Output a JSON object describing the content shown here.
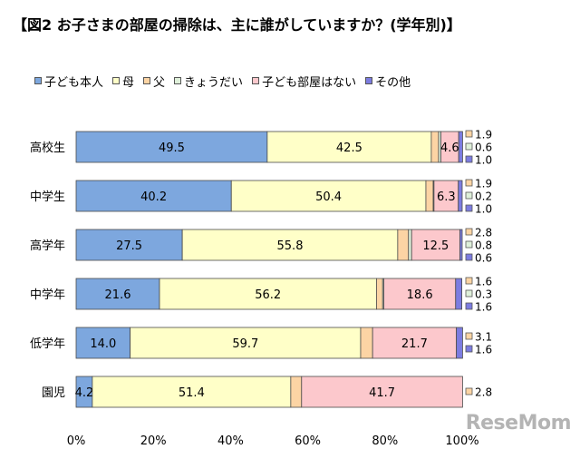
{
  "title": "【図2 お子さまの部屋の掃除は、主に誰がしていますか？(学年別)】",
  "watermark": "ReseMom",
  "chart_data": {
    "type": "bar",
    "orientation": "horizontal",
    "stacked": true,
    "percent_stacked": true,
    "categories": [
      "高校生",
      "中学生",
      "高学年",
      "中学年",
      "低学年",
      "園児"
    ],
    "series": [
      {
        "name": "子ども本人",
        "color": "#7da7de",
        "values": [
          49.5,
          40.2,
          27.5,
          21.6,
          14.0,
          4.2
        ]
      },
      {
        "name": "母",
        "color": "#ffffc8",
        "values": [
          42.5,
          50.4,
          55.8,
          56.2,
          59.7,
          51.4
        ]
      },
      {
        "name": "父",
        "color": "#fcd4a4",
        "values": [
          1.9,
          1.9,
          2.8,
          1.6,
          3.1,
          2.8
        ]
      },
      {
        "name": "きょうだい",
        "color": "#dff0da",
        "values": [
          0.6,
          0.2,
          0.8,
          0.3,
          0,
          0
        ]
      },
      {
        "name": "子ども部屋はない",
        "color": "#fcc8cc",
        "values": [
          4.6,
          6.3,
          12.5,
          18.6,
          21.7,
          41.7
        ]
      },
      {
        "name": "その他",
        "color": "#7c7ce0",
        "values": [
          1.0,
          1.0,
          0.6,
          1.6,
          1.6,
          0
        ]
      }
    ],
    "inside_labels": [
      [
        "49.5",
        "42.5",
        "",
        "",
        "4.6",
        ""
      ],
      [
        "40.2",
        "50.4",
        "",
        "",
        "6.3",
        ""
      ],
      [
        "27.5",
        "55.8",
        "",
        "",
        "12.5",
        ""
      ],
      [
        "21.6",
        "56.2",
        "",
        "",
        "18.6",
        ""
      ],
      [
        "14.0",
        "59.7",
        "",
        "",
        "21.7",
        ""
      ],
      [
        "4.2",
        "51.4",
        "",
        "",
        "41.7",
        ""
      ]
    ],
    "right_labels": [
      [
        {
          "series": 2,
          "text": "1.9"
        },
        {
          "series": 3,
          "text": "0.6"
        },
        {
          "series": 5,
          "text": "1.0"
        }
      ],
      [
        {
          "series": 2,
          "text": "1.9"
        },
        {
          "series": 3,
          "text": "0.2"
        },
        {
          "series": 5,
          "text": "1.0"
        }
      ],
      [
        {
          "series": 2,
          "text": "2.8"
        },
        {
          "series": 3,
          "text": "0.8"
        },
        {
          "series": 5,
          "text": "0.6"
        }
      ],
      [
        {
          "series": 2,
          "text": "1.6"
        },
        {
          "series": 3,
          "text": "0.3"
        },
        {
          "series": 5,
          "text": "1.6"
        }
      ],
      [
        {
          "series": 2,
          "text": "3.1"
        },
        {
          "series": 5,
          "text": "1.6"
        }
      ],
      [
        {
          "series": 2,
          "text": "2.8"
        }
      ]
    ],
    "xlim": [
      0,
      100
    ],
    "xticks": [
      "0%",
      "20%",
      "40%",
      "60%",
      "80%",
      "100%"
    ],
    "grid": false,
    "legend_position": "top"
  }
}
